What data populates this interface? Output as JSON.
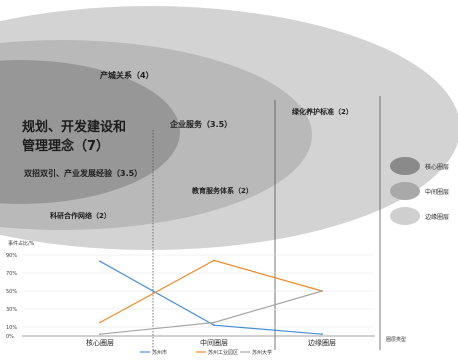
{
  "colors": {
    "outer_ring": "#d3d3d3",
    "middle_ring": "#b9b9b9",
    "core": "#979797",
    "series_suzhou": "#4a8fd4",
    "series_park": "#ec8a2b",
    "series_university": "#a6a6a6"
  },
  "rings": {
    "core_label_line1": "规划、开发建设和",
    "core_label_line2": "管理理念（7）",
    "labels": [
      {
        "text": "产城关系（4）"
      },
      {
        "text": "企业服务（3.5）"
      },
      {
        "text": "双招双引、产业发展经验（3.5）"
      },
      {
        "text": "科研合作网络（2）"
      },
      {
        "text": "教育服务体系（2）"
      },
      {
        "text": "绿化养护标准（2）"
      }
    ]
  },
  "legend_rings": [
    {
      "label": "核心圈层",
      "color": "#8a8a8a"
    },
    {
      "label": "中间圈层",
      "color": "#a9a9a9"
    },
    {
      "label": "边缘圈层",
      "color": "#cfcfcf"
    }
  ],
  "chart_data": {
    "type": "line",
    "ylabel": "事件占比/%",
    "xlabel": "圈层类型",
    "categories": [
      "核心圈层",
      "中间圈层",
      "边缘圈层"
    ],
    "yticks": [
      "90%",
      "70%",
      "50%",
      "30%",
      "10%",
      "0%"
    ],
    "series": [
      {
        "name": "苏州市",
        "values": [
          83,
          12,
          2
        ]
      },
      {
        "name": "苏州工业园区",
        "values": [
          15,
          84,
          50
        ]
      },
      {
        "name": "苏州大学",
        "values": [
          2,
          15,
          50
        ]
      }
    ]
  }
}
